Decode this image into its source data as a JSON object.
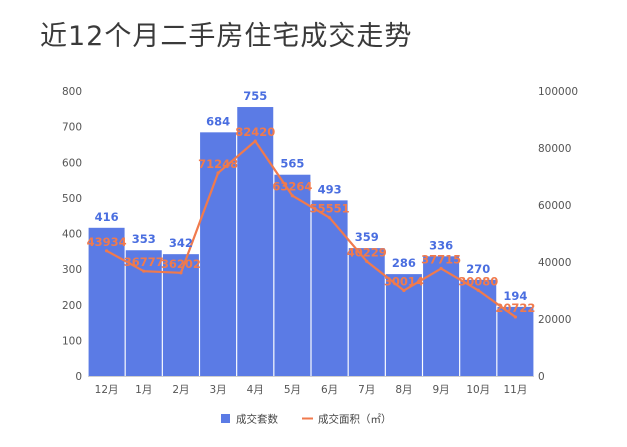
{
  "title": "近12个月二手房住宅成交走势",
  "colors": {
    "bar": "#5b7be5",
    "line": "#f07a4d",
    "bar_label": "#4a6ee0",
    "line_label": "#f07a4d"
  },
  "chart_data": {
    "type": "bar",
    "categories": [
      "12月",
      "1月",
      "2月",
      "3月",
      "4月",
      "5月",
      "6月",
      "7月",
      "8月",
      "9月",
      "10月",
      "11月"
    ],
    "series": [
      {
        "name": "成交套数",
        "type": "bar",
        "axis": "left",
        "values": [
          416,
          353,
          342,
          684,
          755,
          565,
          493,
          359,
          286,
          336,
          270,
          194
        ]
      },
      {
        "name": "成交面积（㎡）",
        "type": "line",
        "axis": "right",
        "values": [
          43934,
          36777,
          36202,
          71248,
          82420,
          63264,
          55551,
          40229,
          30014,
          37715,
          30080,
          20722
        ]
      }
    ],
    "y_left": {
      "min": 0,
      "max": 800,
      "ticks": [
        "0",
        "100",
        "200",
        "300",
        "400",
        "500",
        "600",
        "700",
        "800"
      ]
    },
    "y_right": {
      "min": 0,
      "max": 100000,
      "ticks": [
        "0",
        "20000",
        "40000",
        "60000",
        "80000",
        "100000"
      ]
    },
    "grid": false,
    "legend_position": "bottom-center"
  }
}
